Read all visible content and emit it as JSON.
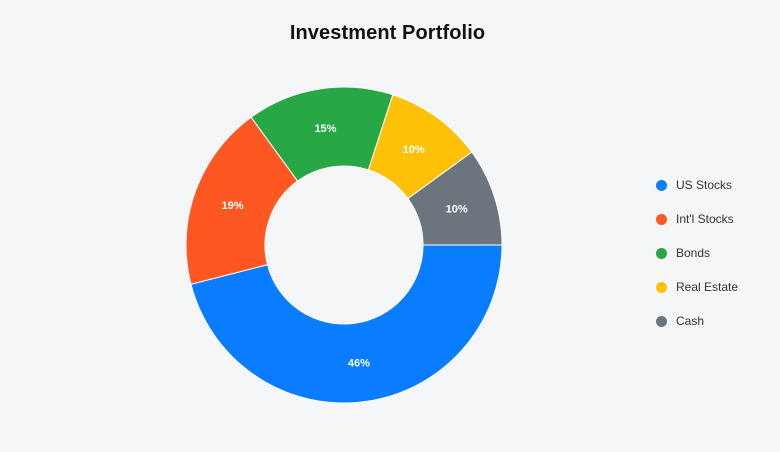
{
  "chart_data": {
    "type": "pie",
    "title": "Investment Portfolio",
    "categories": [
      "US Stocks",
      "Int'l Stocks",
      "Bonds",
      "Real Estate",
      "Cash"
    ],
    "values": [
      46,
      19,
      15,
      10,
      10
    ],
    "data_labels": [
      "46%",
      "19%",
      "15%",
      "10%",
      "10%"
    ],
    "colors": [
      "#0a7cff",
      "#ff5722",
      "#28a745",
      "#ffc107",
      "#6c757d"
    ],
    "donut": true,
    "legend_position": "right"
  }
}
